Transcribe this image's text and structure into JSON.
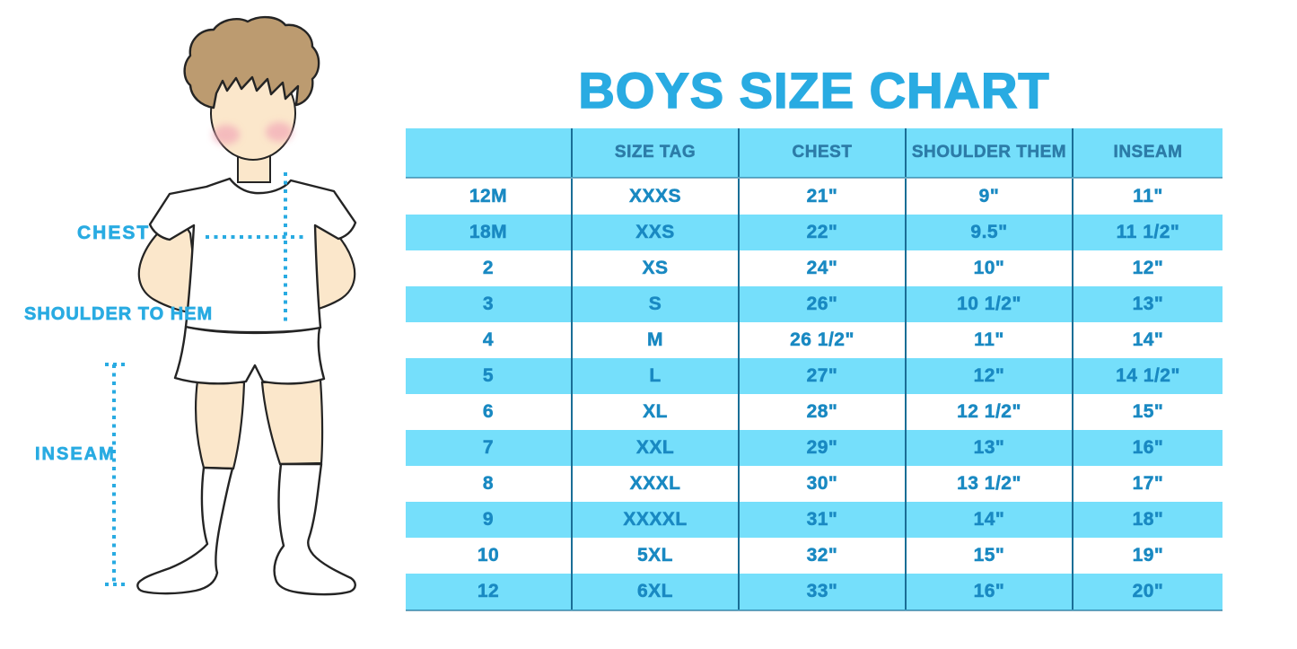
{
  "title": "BOYS SIZE CHART",
  "colors": {
    "accent": "#29ABE2",
    "band": "#75DFFB",
    "header_text": "#2C7CA8",
    "cell_text": "#1989C2",
    "divider": "#1A6E96",
    "skin": "#FBE7CB",
    "hair": "#BC9B70",
    "blush": "#F2A9B7",
    "outline": "#242424"
  },
  "figure": {
    "labels": [
      {
        "id": "chest",
        "text": "CHEST"
      },
      {
        "id": "shoulder_to_hem",
        "text": "SHOULDER TO HEM"
      },
      {
        "id": "inseam",
        "text": "INSEAM"
      }
    ]
  },
  "chart_data": {
    "type": "table",
    "title": "BOYS SIZE CHART",
    "columns": [
      "",
      "SIZE TAG",
      "CHEST",
      "SHOULDER THEM",
      "INSEAM"
    ],
    "rows": [
      [
        "12M",
        "XXXS",
        "21\"",
        "9\"",
        "11\""
      ],
      [
        "18M",
        "XXS",
        "22\"",
        "9.5\"",
        "11 1/2\""
      ],
      [
        "2",
        "XS",
        "24\"",
        "10\"",
        "12\""
      ],
      [
        "3",
        "S",
        "26\"",
        "10 1/2\"",
        "13\""
      ],
      [
        "4",
        "M",
        "26 1/2\"",
        "11\"",
        "14\""
      ],
      [
        "5",
        "L",
        "27\"",
        "12\"",
        "14 1/2\""
      ],
      [
        "6",
        "XL",
        "28\"",
        "12 1/2\"",
        "15\""
      ],
      [
        "7",
        "XXL",
        "29\"",
        "13\"",
        "16\""
      ],
      [
        "8",
        "XXXL",
        "30\"",
        "13 1/2\"",
        "17\""
      ],
      [
        "9",
        "XXXXL",
        "31\"",
        "14\"",
        "18\""
      ],
      [
        "10",
        "5XL",
        "32\"",
        "15\"",
        "19\""
      ],
      [
        "12",
        "6XL",
        "33\"",
        "16\"",
        "20\""
      ]
    ]
  }
}
